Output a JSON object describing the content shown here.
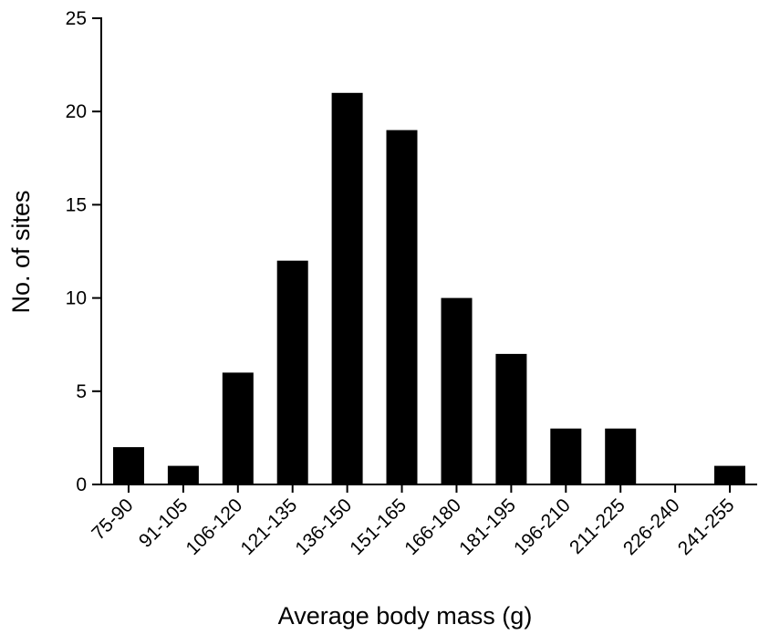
{
  "chart_data": {
    "type": "bar",
    "categories": [
      "75-90",
      "91-105",
      "106-120",
      "121-135",
      "136-150",
      "151-165",
      "166-180",
      "181-195",
      "196-210",
      "211-225",
      "226-240",
      "241-255"
    ],
    "values": [
      2,
      1,
      6,
      12,
      21,
      19,
      10,
      7,
      3,
      3,
      0,
      1
    ],
    "xlabel": "Average body mass (g)",
    "ylabel": "No. of sites",
    "ylim": [
      0,
      25
    ],
    "yticks": [
      0,
      5,
      10,
      15,
      20,
      25
    ],
    "grid": false,
    "legend": "none",
    "bar_color": "#000000"
  }
}
